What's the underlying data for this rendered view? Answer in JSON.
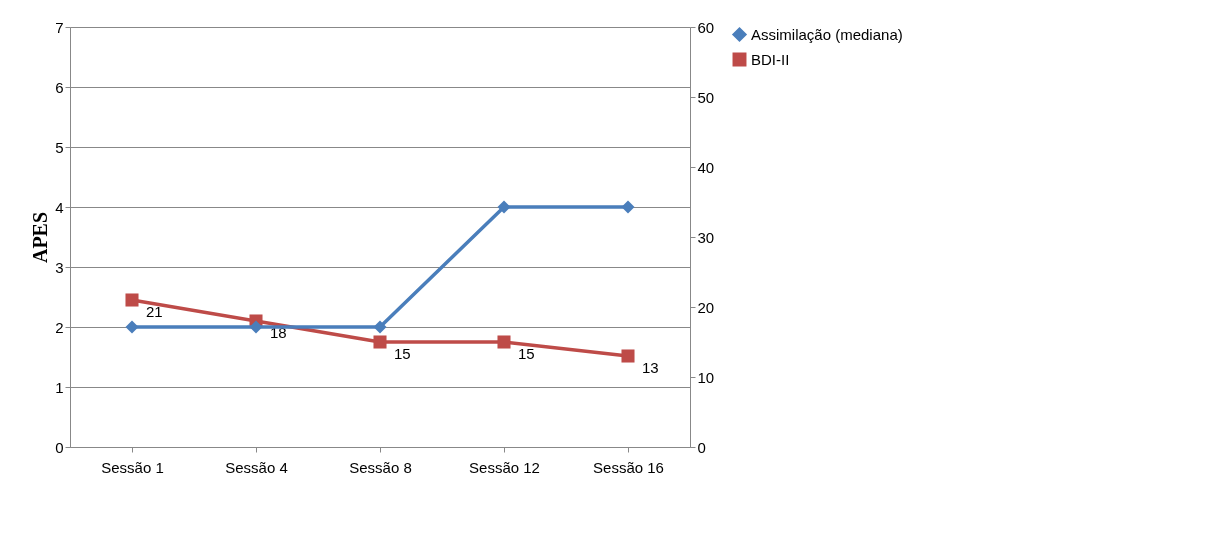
{
  "chart_data": {
    "type": "line",
    "ylabel": "APES",
    "categories": [
      "Sessão 1",
      "Sessão 4",
      "Sessão 8",
      "Sessão 12",
      "Sessão 16"
    ],
    "series": [
      {
        "name": "Assimilação (mediana)",
        "color": "#4a7ebb",
        "marker": "diamond",
        "values": [
          2,
          2,
          2,
          4,
          4
        ]
      },
      {
        "name": "BDI-II",
        "color": "#be4b48",
        "marker": "square",
        "axis": "y2",
        "values": [
          21,
          18,
          15,
          15,
          13
        ],
        "value_labels": [
          "21",
          "18",
          "15",
          "15",
          "13"
        ]
      }
    ],
    "ylim": [
      0,
      7
    ],
    "yticks": [
      0,
      1,
      2,
      3,
      4,
      5,
      6,
      7
    ],
    "y2lim": [
      0,
      60
    ],
    "y2ticks": [
      0,
      10,
      20,
      30,
      40,
      50,
      60
    ],
    "grid": "y",
    "legend": "right"
  }
}
